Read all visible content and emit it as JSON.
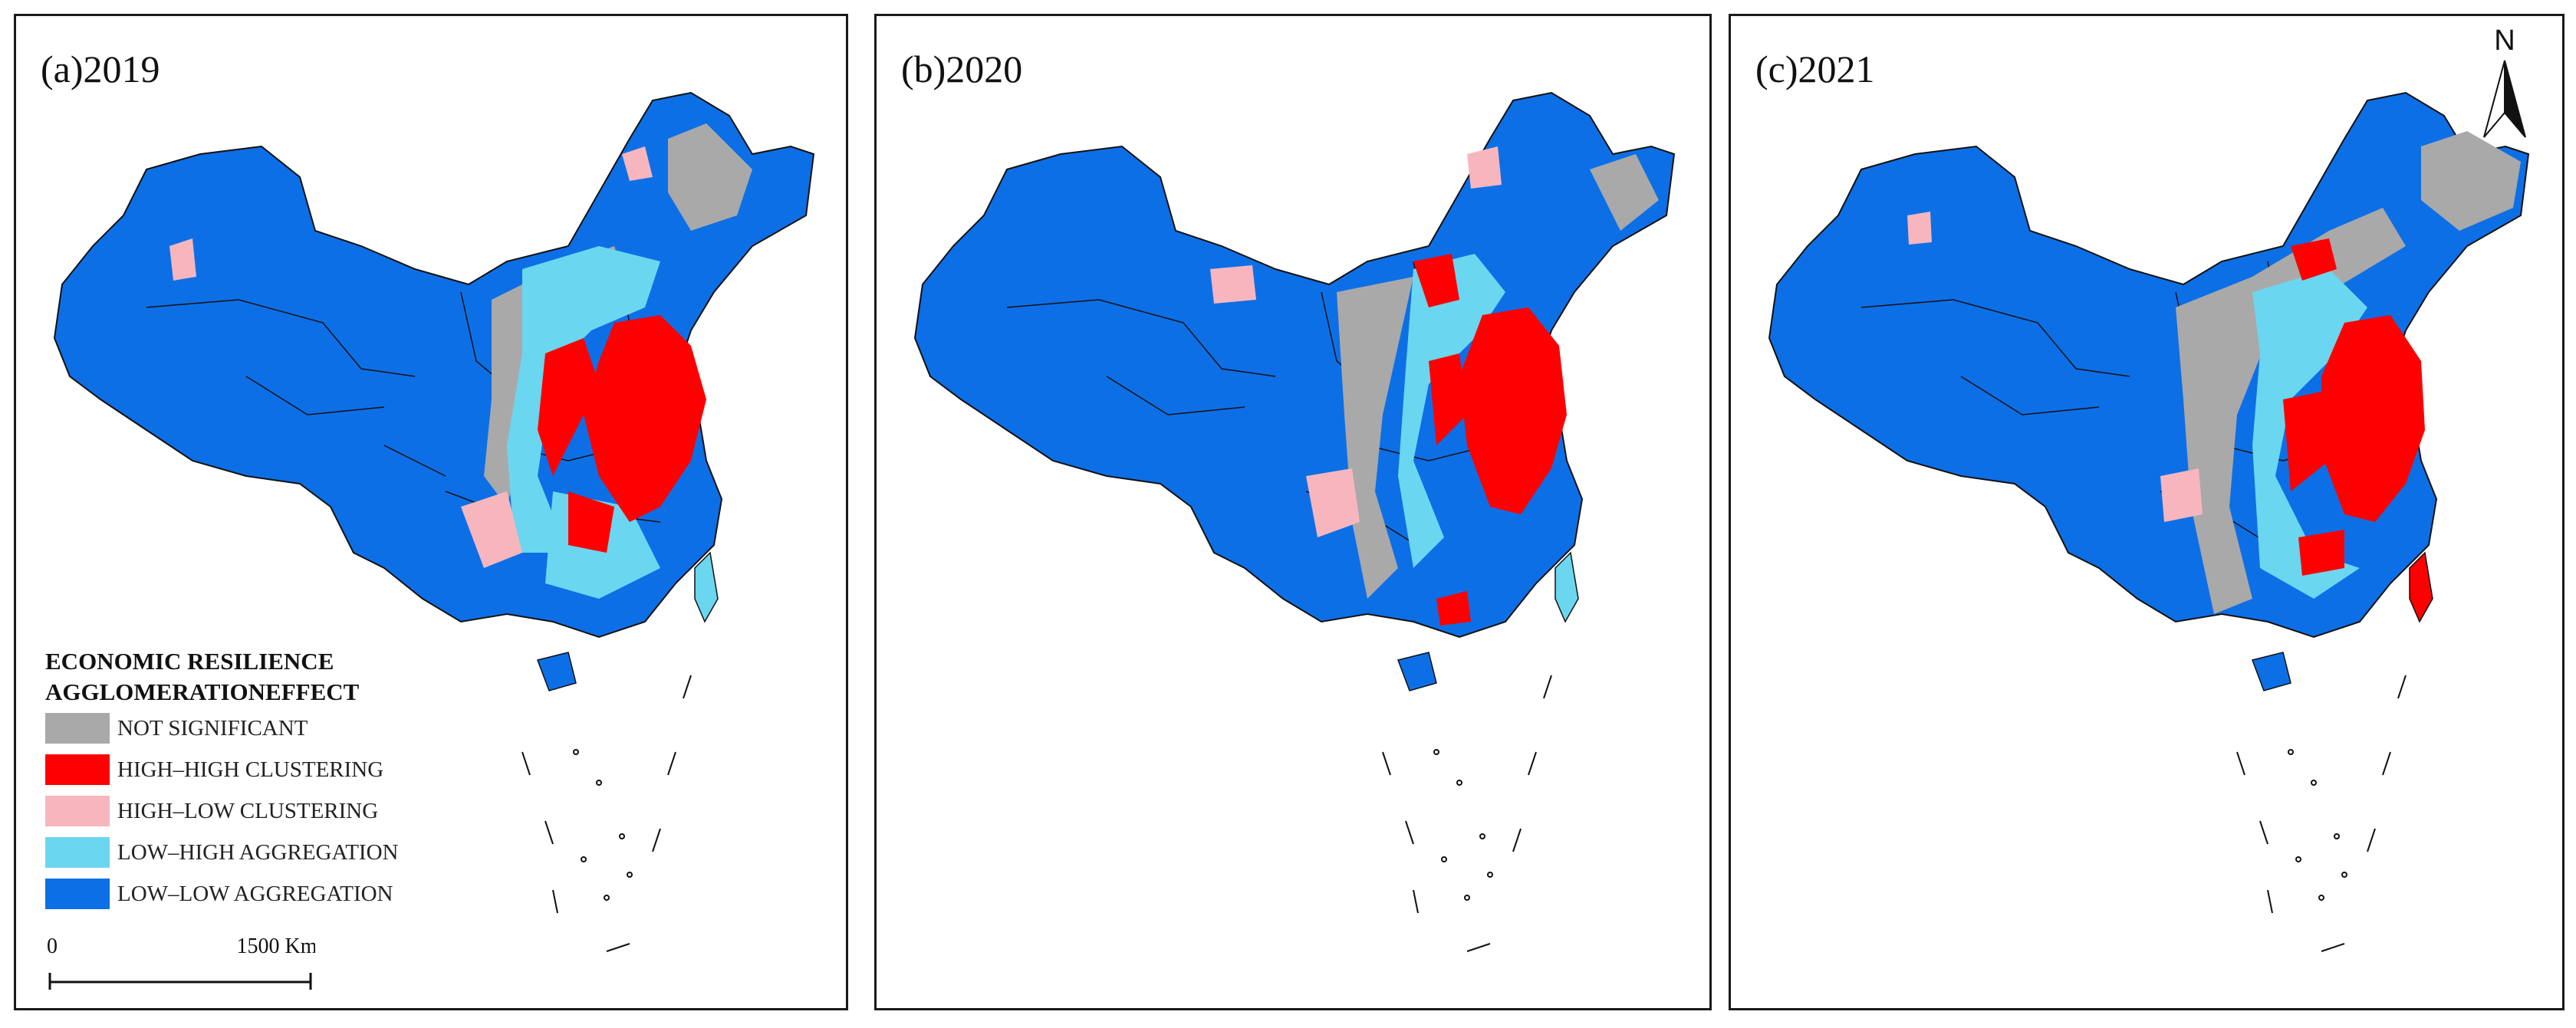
{
  "panels": [
    {
      "id": "a",
      "label": "(a)2019"
    },
    {
      "id": "b",
      "label": "(b)2020"
    },
    {
      "id": "c",
      "label": "(c)2021"
    }
  ],
  "legend": {
    "title_line1": "ECONOMIC RESILIENCE",
    "title_line2": "AGGLOMERATIONEFFECT",
    "items": [
      {
        "label": "NOT SIGNIFICANT",
        "color": "#a9a9a9"
      },
      {
        "label": "HIGH–HIGH CLUSTERING",
        "color": "#ff0000"
      },
      {
        "label": "HIGH–LOW CLUSTERING",
        "color": "#f7b6be"
      },
      {
        "label": "LOW–HIGH AGGREGATION",
        "color": "#6bd6ef"
      },
      {
        "label": "LOW–LOW AGGREGATION",
        "color": "#0d6fe6"
      }
    ]
  },
  "scale_bar": {
    "start_label": "0",
    "end_label": "1500 Km"
  },
  "north_arrow": {
    "label": "N"
  }
}
